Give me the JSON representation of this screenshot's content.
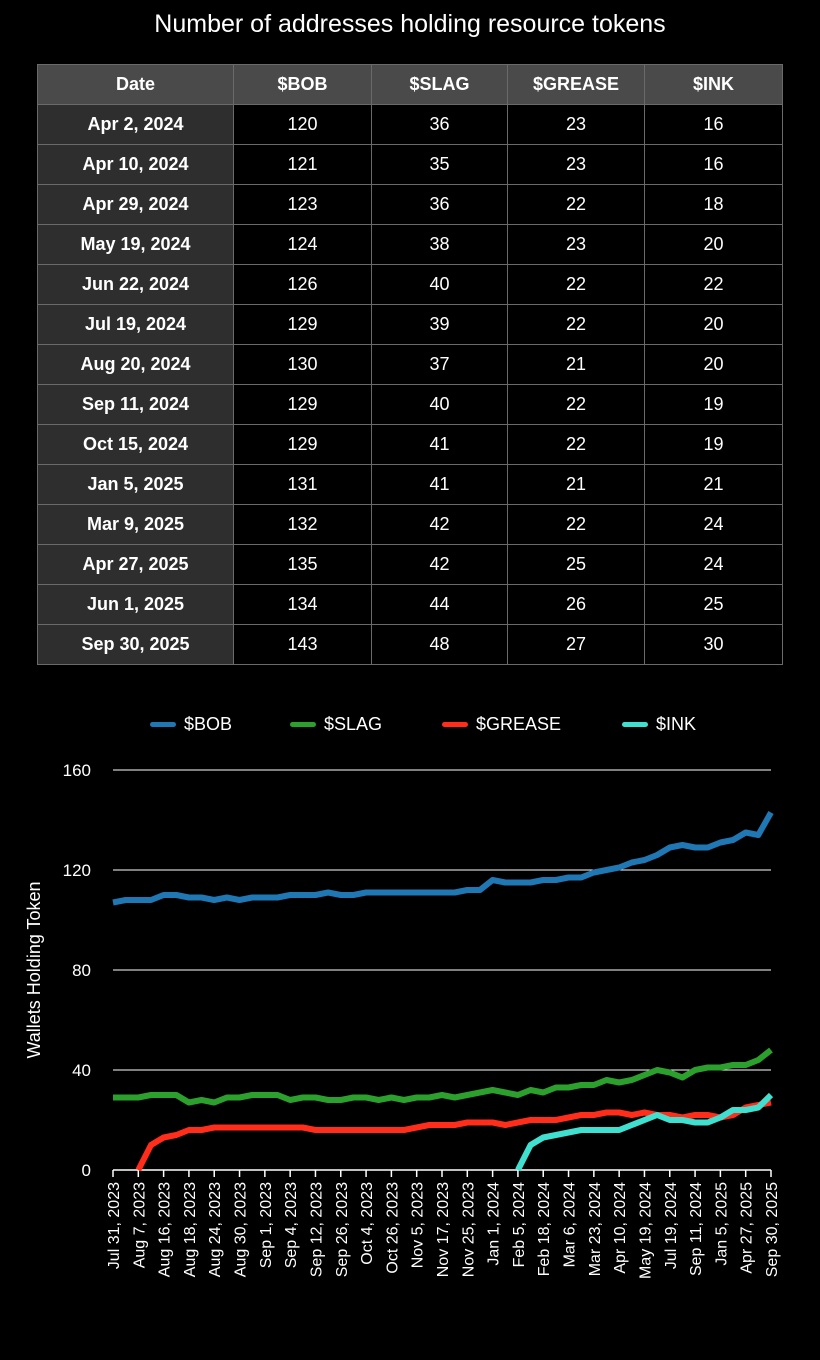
{
  "table": {
    "title": "Number of addresses holding resource tokens",
    "columns": [
      "Date",
      "$BOB",
      "$SLAG",
      "$GREASE",
      "$INK"
    ],
    "rows": [
      [
        "Apr 2, 2024",
        "120",
        "36",
        "23",
        "16"
      ],
      [
        "Apr 10, 2024",
        "121",
        "35",
        "23",
        "16"
      ],
      [
        "Apr 29, 2024",
        "123",
        "36",
        "22",
        "18"
      ],
      [
        "May 19, 2024",
        "124",
        "38",
        "23",
        "20"
      ],
      [
        "Jun 22, 2024",
        "126",
        "40",
        "22",
        "22"
      ],
      [
        "Jul 19, 2024",
        "129",
        "39",
        "22",
        "20"
      ],
      [
        "Aug 20, 2024",
        "130",
        "37",
        "21",
        "20"
      ],
      [
        "Sep 11, 2024",
        "129",
        "40",
        "22",
        "19"
      ],
      [
        "Oct 15, 2024",
        "129",
        "41",
        "22",
        "19"
      ],
      [
        "Jan 5, 2025",
        "131",
        "41",
        "21",
        "21"
      ],
      [
        "Mar 9, 2025",
        "132",
        "42",
        "22",
        "24"
      ],
      [
        "Apr 27, 2025",
        "135",
        "42",
        "25",
        "24"
      ],
      [
        "Jun 1, 2025",
        "134",
        "44",
        "26",
        "25"
      ],
      [
        "Sep 30, 2025",
        "143",
        "48",
        "27",
        "30"
      ]
    ]
  },
  "chart_data": {
    "type": "line",
    "title": "",
    "xlabel": "",
    "ylabel": "Wallets Holding Token",
    "ylim": [
      0,
      160
    ],
    "yticks": [
      0,
      40,
      80,
      120,
      160
    ],
    "grid": "horizontal",
    "legend_position": "top",
    "x_tick_labels": [
      "Jul 31, 2023",
      "Aug 7, 2023",
      "Aug 16, 2023",
      "Aug 18, 2023",
      "Aug 24, 2023",
      "Aug 30, 2023",
      "Sep 1, 2023",
      "Sep 4, 2023",
      "Sep 12, 2023",
      "Sep 26, 2023",
      "Oct 4, 2023",
      "Oct 26, 2023",
      "Nov 5, 2023",
      "Nov 17, 2023",
      "Nov 25, 2023",
      "Jan 1, 2024",
      "Feb 5, 2024",
      "Feb 18, 2024",
      "Mar 6, 2024",
      "Mar 23, 2024",
      "Apr 10, 2024",
      "May 19, 2024",
      "Jul 19, 2024",
      "Sep 11, 2024",
      "Jan 5, 2025",
      "Apr 27, 2025",
      "Sep 30, 2025"
    ],
    "series": [
      {
        "name": "$BOB",
        "color": "#1f77b4",
        "values": [
          107,
          108,
          108,
          108,
          110,
          110,
          109,
          109,
          108,
          109,
          108,
          109,
          109,
          109,
          110,
          110,
          110,
          111,
          110,
          110,
          111,
          111,
          111,
          111,
          111,
          111,
          111,
          111,
          112,
          112,
          116,
          115,
          115,
          115,
          116,
          116,
          117,
          117,
          119,
          120,
          121,
          123,
          124,
          126,
          129,
          130,
          129,
          129,
          131,
          132,
          135,
          134,
          143
        ]
      },
      {
        "name": "$SLAG",
        "color": "#2ca02c",
        "values": [
          29,
          29,
          29,
          30,
          30,
          30,
          27,
          28,
          27,
          29,
          29,
          30,
          30,
          30,
          28,
          29,
          29,
          28,
          28,
          29,
          29,
          28,
          29,
          28,
          29,
          29,
          30,
          29,
          30,
          31,
          32,
          31,
          30,
          32,
          31,
          33,
          33,
          34,
          34,
          36,
          35,
          36,
          38,
          40,
          39,
          37,
          40,
          41,
          41,
          42,
          42,
          44,
          48
        ]
      },
      {
        "name": "$GREASE",
        "color": "#ff2d1a",
        "values": [
          null,
          null,
          0,
          10,
          13,
          14,
          16,
          16,
          17,
          17,
          17,
          17,
          17,
          17,
          17,
          17,
          16,
          16,
          16,
          16,
          16,
          16,
          16,
          16,
          17,
          18,
          18,
          18,
          19,
          19,
          19,
          18,
          19,
          20,
          20,
          20,
          21,
          22,
          22,
          23,
          23,
          22,
          23,
          22,
          22,
          21,
          22,
          22,
          21,
          22,
          25,
          26,
          27
        ]
      },
      {
        "name": "$INK",
        "color": "#40e0d0",
        "values": [
          null,
          null,
          null,
          null,
          null,
          null,
          null,
          null,
          null,
          null,
          null,
          null,
          null,
          null,
          null,
          null,
          null,
          null,
          null,
          null,
          null,
          null,
          null,
          null,
          null,
          null,
          null,
          null,
          null,
          null,
          null,
          null,
          0,
          10,
          13,
          14,
          15,
          16,
          16,
          16,
          16,
          18,
          20,
          22,
          20,
          20,
          19,
          19,
          21,
          24,
          24,
          25,
          30
        ]
      }
    ]
  }
}
